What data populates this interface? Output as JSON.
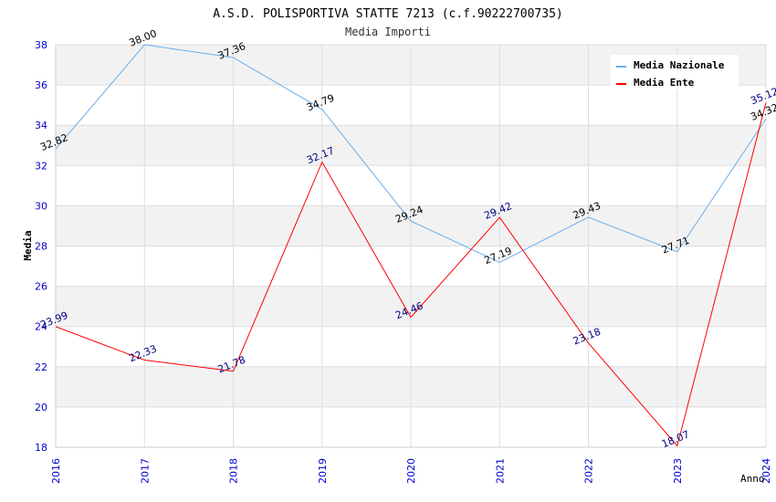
{
  "chart_data": {
    "type": "line",
    "title": "A.S.D. POLISPORTIVA STATTE 7213 (c.f.90222700735)",
    "subtitle": "Media Importi",
    "xlabel": "Anno",
    "ylabel": "Media",
    "categories": [
      "2016",
      "2017",
      "2018",
      "2019",
      "2020",
      "2021",
      "2022",
      "2023",
      "2024"
    ],
    "ylim": [
      18,
      38
    ],
    "yticks": [
      "18",
      "20",
      "22",
      "24",
      "26",
      "28",
      "30",
      "32",
      "34",
      "36",
      "38"
    ],
    "grid": true,
    "legend_position": "top-right",
    "series": [
      {
        "name": "Media Nazionale",
        "color": "#6aaee8",
        "label_color": "#000000",
        "values": [
          32.82,
          38.0,
          37.36,
          34.79,
          29.24,
          27.19,
          29.43,
          27.71,
          34.32
        ],
        "labels": [
          "32.82",
          "38.00",
          "37.36",
          "34.79",
          "29.24",
          "27.19",
          "29.43",
          "27.71",
          "34.32"
        ]
      },
      {
        "name": "Media Ente",
        "color": "#ff0000",
        "label_color": "#000080",
        "values": [
          23.99,
          22.33,
          21.78,
          32.17,
          24.46,
          29.42,
          23.18,
          18.07,
          35.12
        ],
        "labels": [
          "23.99",
          "22.33",
          "21.78",
          "32.17",
          "24.46",
          "29.42",
          "23.18",
          "18.07",
          "35.12"
        ]
      }
    ],
    "colors": {
      "axis_tick_labels": "#0000cc",
      "band_fill": "#f2f2f2",
      "grid": "#dddddd",
      "axis": "#cccccc"
    }
  }
}
